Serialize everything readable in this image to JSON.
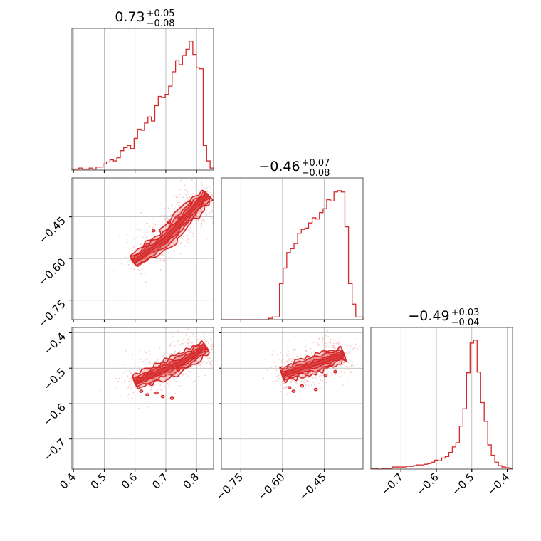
{
  "chart_data": {
    "type": "corner",
    "color": "#d62728",
    "light_color": "#f4c6c6",
    "grid": true,
    "parameters": [
      {
        "title": {
          "median": "0.73",
          "plus": "+0.05",
          "minus": "−0.08"
        },
        "range": [
          0.395,
          0.855
        ],
        "ticks": [
          {
            "v": 0.4,
            "label": "0.4"
          },
          {
            "v": 0.5,
            "label": "0.5"
          },
          {
            "v": 0.6,
            "label": "0.6"
          },
          {
            "v": 0.7,
            "label": "0.7"
          },
          {
            "v": 0.8,
            "label": "0.8"
          }
        ],
        "hist_edges": [
          0.395,
          0.855
        ],
        "hist_counts": [
          1,
          1,
          2,
          1,
          1,
          2,
          1,
          3,
          3,
          6,
          8,
          10,
          9,
          12,
          19,
          22,
          24,
          21,
          31,
          40,
          39,
          46,
          52,
          48,
          63,
          72,
          71,
          74,
          82,
          96,
          107,
          103,
          112,
          118,
          126,
          113,
          100,
          99,
          24,
          9,
          2
        ]
      },
      {
        "title": {
          "median": "−0.46",
          "plus": "+0.07",
          "minus": "−0.08"
        },
        "range": [
          -0.82,
          -0.31
        ],
        "ticks": [
          {
            "v": -0.75,
            "label": "−0.75"
          },
          {
            "v": -0.6,
            "label": "−0.60"
          },
          {
            "v": -0.45,
            "label": "−0.45"
          }
        ],
        "hist_edges": [
          -0.82,
          -0.31
        ],
        "hist_counts": [
          0,
          0,
          0,
          0,
          0,
          0,
          0,
          0,
          0,
          0,
          0,
          0,
          0,
          1,
          2,
          2,
          28,
          40,
          52,
          55,
          59,
          67,
          70,
          71,
          75,
          79,
          78,
          83,
          86,
          93,
          92,
          99,
          100,
          99,
          72,
          28,
          12,
          2,
          2
        ]
      },
      {
        "title": {
          "median": "−0.49",
          "plus": "+0.03",
          "minus": "−0.04"
        },
        "range": [
          -0.785,
          -0.385
        ],
        "ticks": [
          {
            "v": -0.7,
            "label": "−0.7"
          },
          {
            "v": -0.6,
            "label": "−0.6"
          },
          {
            "v": -0.5,
            "label": "−0.5"
          },
          {
            "v": -0.4,
            "label": "−0.4"
          }
        ],
        "hist_edges": [
          -0.785,
          -0.385
        ],
        "hist_counts": [
          1,
          1,
          0,
          1,
          1,
          1,
          3,
          3,
          3,
          3,
          4,
          4,
          5,
          6,
          6,
          7,
          8,
          10,
          13,
          12,
          16,
          18,
          24,
          32,
          38,
          62,
          87,
          139,
          182,
          186,
          140,
          96,
          69,
          35,
          20,
          10,
          5,
          3,
          2,
          1
        ]
      }
    ],
    "contours": [
      {
        "row": 1,
        "col": 0,
        "ridge": [
          [
            0.595,
            -0.61
          ],
          [
            0.7,
            -0.53
          ],
          [
            0.78,
            -0.43
          ],
          [
            0.835,
            -0.37
          ]
        ],
        "center": [
          0.76,
          -0.44
        ],
        "spread": [
          0.04,
          0.03
        ],
        "islands": [
          [
            0.66,
            -0.5
          ],
          [
            0.71,
            -0.47
          ],
          [
            0.74,
            -0.45
          ],
          [
            0.64,
            -0.55
          ],
          [
            0.78,
            -0.4
          ]
        ]
      },
      {
        "row": 2,
        "col": 0,
        "ridge": [
          [
            0.6,
            -0.54
          ],
          [
            0.68,
            -0.51
          ],
          [
            0.76,
            -0.48
          ],
          [
            0.83,
            -0.44
          ]
        ],
        "center": [
          0.76,
          -0.47
        ],
        "spread": [
          0.05,
          0.02
        ],
        "islands": [
          [
            0.62,
            -0.565
          ],
          [
            0.64,
            -0.575
          ],
          [
            0.67,
            -0.57
          ],
          [
            0.69,
            -0.58
          ],
          [
            0.72,
            -0.585
          ],
          [
            0.74,
            -0.505
          ],
          [
            0.79,
            -0.47
          ]
        ]
      },
      {
        "row": 2,
        "col": 1,
        "ridge": [
          [
            -0.6,
            -0.52
          ],
          [
            -0.53,
            -0.5
          ],
          [
            -0.45,
            -0.48
          ],
          [
            -0.38,
            -0.46
          ]
        ],
        "center": [
          -0.44,
          -0.49
        ],
        "spread": [
          0.05,
          0.02
        ],
        "islands": [
          [
            -0.575,
            -0.555
          ],
          [
            -0.56,
            -0.565
          ],
          [
            -0.53,
            -0.55
          ],
          [
            -0.48,
            -0.56
          ],
          [
            -0.445,
            -0.52
          ],
          [
            -0.41,
            -0.51
          ]
        ]
      }
    ]
  }
}
